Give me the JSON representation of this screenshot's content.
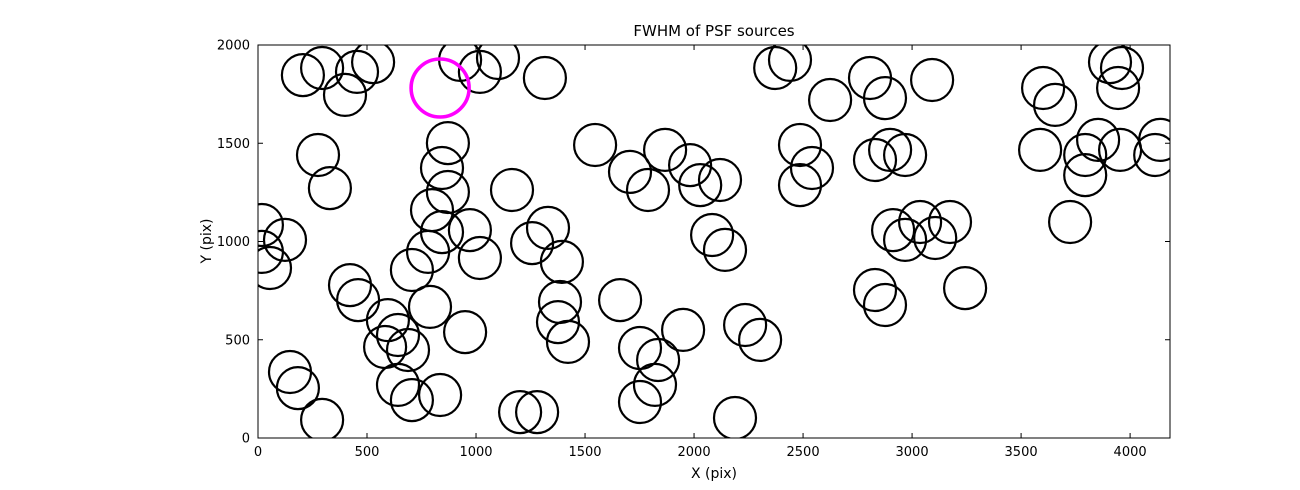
{
  "chart_data": {
    "type": "scatter",
    "title": "FWHM of PSF sources",
    "xlabel": "X (pix)",
    "ylabel": "Y (pix)",
    "xlim": [
      0,
      4183
    ],
    "ylim": [
      0,
      2000
    ],
    "xticks": [
      0,
      500,
      1000,
      1500,
      2000,
      2500,
      3000,
      3500,
      4000
    ],
    "yticks": [
      0,
      500,
      1000,
      1500,
      2000
    ],
    "grid": false,
    "legend": "none",
    "marker": {
      "shape": "circle",
      "fill": "none",
      "edge_color": "#000000",
      "radius_px": 21,
      "stroke_width": 2.2
    },
    "highlight": {
      "x": 835,
      "y": 1781,
      "edge_color": "#ff00ff",
      "radius_px": 29,
      "stroke_width": 3.6,
      "meaning": "selected PSF source"
    },
    "points": [
      [
        206,
        1847
      ],
      [
        294,
        1883
      ],
      [
        399,
        1746
      ],
      [
        454,
        1863
      ],
      [
        528,
        1913
      ],
      [
        927,
        1924
      ],
      [
        1018,
        1863
      ],
      [
        1101,
        1934
      ],
      [
        1316,
        1832
      ],
      [
        275,
        1440
      ],
      [
        330,
        1272
      ],
      [
        871,
        1501
      ],
      [
        844,
        1374
      ],
      [
        871,
        1252
      ],
      [
        798,
        1160
      ],
      [
        1165,
        1262
      ],
      [
        1546,
        1491
      ],
      [
        1706,
        1354
      ],
      [
        1789,
        1262
      ],
      [
        1867,
        1466
      ],
      [
        1982,
        1389
      ],
      [
        2028,
        1287
      ],
      [
        2119,
        1313
      ],
      [
        2083,
        1033
      ],
      [
        2142,
        957
      ],
      [
        2372,
        1883
      ],
      [
        2440,
        1924
      ],
      [
        2486,
        1491
      ],
      [
        2541,
        1374
      ],
      [
        2486,
        1287
      ],
      [
        2624,
        1720
      ],
      [
        2807,
        1832
      ],
      [
        2876,
        1730
      ],
      [
        3092,
        1822
      ],
      [
        2830,
        1415
      ],
      [
        2899,
        1466
      ],
      [
        2968,
        1440
      ],
      [
        2913,
        1058
      ],
      [
        2968,
        1008
      ],
      [
        3037,
        1099
      ],
      [
        3106,
        1018
      ],
      [
        3174,
        1099
      ],
      [
        2830,
        753
      ],
      [
        2876,
        677
      ],
      [
        3243,
        763
      ],
      [
        3725,
        1099
      ],
      [
        3601,
        1781
      ],
      [
        3656,
        1695
      ],
      [
        3908,
        1913
      ],
      [
        3963,
        1883
      ],
      [
        3945,
        1781
      ],
      [
        3587,
        1466
      ],
      [
        3794,
        1440
      ],
      [
        3794,
        1338
      ],
      [
        3853,
        1517
      ],
      [
        3954,
        1466
      ],
      [
        4115,
        1440
      ],
      [
        4138,
        1517
      ],
      [
        18,
        1084
      ],
      [
        18,
        947
      ],
      [
        55,
        865
      ],
      [
        124,
        1008
      ],
      [
        147,
        336
      ],
      [
        183,
        254
      ],
      [
        294,
        92
      ],
      [
        422,
        778
      ],
      [
        459,
        702
      ],
      [
        596,
        600
      ],
      [
        642,
        524
      ],
      [
        583,
        463
      ],
      [
        688,
        448
      ],
      [
        789,
        667
      ],
      [
        950,
        539
      ],
      [
        706,
        855
      ],
      [
        780,
        947
      ],
      [
        844,
        1048
      ],
      [
        972,
        1058
      ],
      [
        1018,
        916
      ],
      [
        1257,
        992
      ],
      [
        1330,
        1069
      ],
      [
        1394,
        896
      ],
      [
        1376,
        590
      ],
      [
        1422,
        489
      ],
      [
        642,
        270
      ],
      [
        706,
        193
      ],
      [
        835,
        219
      ],
      [
        1202,
        132
      ],
      [
        1280,
        132
      ],
      [
        1752,
        183
      ],
      [
        1821,
        270
      ],
      [
        1752,
        458
      ],
      [
        1835,
        397
      ],
      [
        1950,
        550
      ],
      [
        2234,
        575
      ],
      [
        2303,
        499
      ],
      [
        2188,
        102
      ],
      [
        1661,
        702
      ],
      [
        1385,
        692
      ]
    ]
  }
}
